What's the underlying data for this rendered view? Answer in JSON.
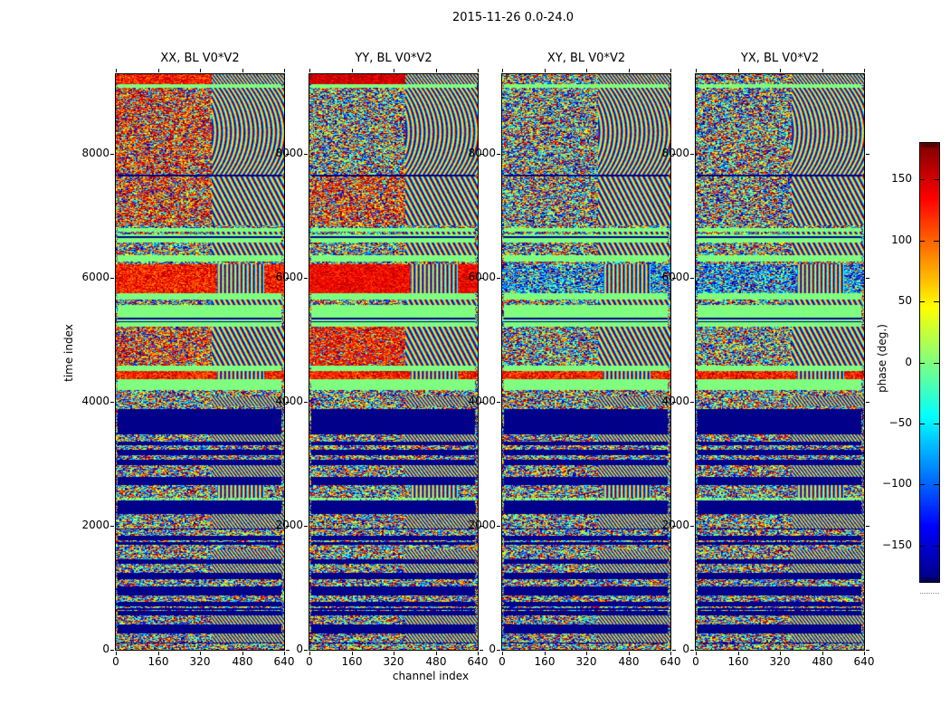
{
  "figure": {
    "title": "2015-11-26 0.0-24.0",
    "xlabel": "channel index",
    "ylabel": "time index",
    "colorbar_label": "phase (deg.)"
  },
  "chart_data": {
    "type": "heatmap",
    "title": "2015-11-26 0.0-24.0",
    "xlabel": "channel index",
    "ylabel": "time index",
    "xticks": [
      0,
      160,
      320,
      480,
      640
    ],
    "yticks": [
      0,
      2000,
      4000,
      6000,
      8000
    ],
    "xlim": [
      0,
      640
    ],
    "ylim": [
      0,
      9285
    ],
    "grid": false,
    "panels": [
      {
        "key": "XX",
        "title": "XX, BL V0*V2"
      },
      {
        "key": "YY",
        "title": "YY, BL V0*V2"
      },
      {
        "key": "XY",
        "title": "XY, BL V0*V2"
      },
      {
        "key": "YX",
        "title": "YX, BL V0*V2"
      }
    ],
    "colorbar": {
      "label": "phase (deg.)",
      "colormap": "jet",
      "vmin": -180,
      "vmax": 180,
      "ticks": [
        150,
        100,
        50,
        0,
        -50,
        -100,
        -150
      ]
    },
    "colors": {
      "navy_min_phase": "#000080",
      "green_zero_phase": "#80ff80",
      "darkred_max_phase": "#800000",
      "axis": "#000000",
      "background": "#ffffff"
    },
    "band_legend": {
      "sp": "random rainbow phase speckle",
      "spB": "blue-leaning phase speckle",
      "spO": "orange-tinted phase speckle",
      "or": "orange phase band (~+85..+170 deg)",
      "orS": "strong orange-red band",
      "orS2": "orange-dominated noisy band",
      "redN": "red noise band",
      "gr": "uniform ~0 deg (light green)",
      "nv": "uniform ~-180 deg (navy)",
      "pg": "pale green noisy line",
      "right_arc": "curved vertical interference fringes on right side",
      "right_diag": "diagonal fringes on right side",
      "right_vf": "vertical fringes on right side",
      "right_hatch": "fine diagonal hatch on right side"
    },
    "bands": [
      {
        "t0": 9285,
        "t1": 9120,
        "tex": "sp",
        "by": {
          "XX": "or",
          "YY": "redN"
        },
        "right": "hatch"
      },
      {
        "t0": 9120,
        "t1": 9070,
        "tex": "gr"
      },
      {
        "t0": 9070,
        "t1": 7660,
        "tex": "sp",
        "by": {
          "XX": "spO"
        },
        "right": "arc"
      },
      {
        "t0": 7660,
        "t1": 7635,
        "tex": "nv"
      },
      {
        "t0": 7635,
        "t1": 6850,
        "tex": "sp",
        "by": {
          "XX": "spO",
          "YY": "spO"
        },
        "right": "diag"
      },
      {
        "t0": 6850,
        "t1": 6800,
        "tex": "sp"
      },
      {
        "t0": 6800,
        "t1": 6745,
        "tex": "gr"
      },
      {
        "t0": 6745,
        "t1": 6705,
        "tex": "sp",
        "right": "diag"
      },
      {
        "t0": 6705,
        "t1": 6668,
        "tex": "gr"
      },
      {
        "t0": 6668,
        "t1": 6645,
        "tex": "nv"
      },
      {
        "t0": 6645,
        "t1": 6565,
        "tex": "gr"
      },
      {
        "t0": 6565,
        "t1": 6365,
        "tex": "sp",
        "right": "diag"
      },
      {
        "t0": 6365,
        "t1": 6265,
        "tex": "gr"
      },
      {
        "t0": 6265,
        "t1": 6215,
        "tex": "sp"
      },
      {
        "t0": 6215,
        "t1": 5745,
        "tex": "spB",
        "by": {
          "XX": "or",
          "YY": "orS"
        },
        "right": "vf"
      },
      {
        "t0": 5745,
        "t1": 5645,
        "tex": "gr"
      },
      {
        "t0": 5645,
        "t1": 5565,
        "tex": "sp",
        "right": "diag"
      },
      {
        "t0": 5565,
        "t1": 5355,
        "tex": "gr"
      },
      {
        "t0": 5355,
        "t1": 5330,
        "tex": "nv"
      },
      {
        "t0": 5330,
        "t1": 5300,
        "tex": "gr"
      },
      {
        "t0": 5300,
        "t1": 5280,
        "tex": "nv"
      },
      {
        "t0": 5280,
        "t1": 5215,
        "tex": "gr"
      },
      {
        "t0": 5215,
        "t1": 4580,
        "tex": "sp",
        "by": {
          "XX": "spO",
          "YY": "orS2"
        },
        "right": "diag"
      },
      {
        "t0": 4580,
        "t1": 4490,
        "tex": "gr"
      },
      {
        "t0": 4490,
        "t1": 4360,
        "tex": "or",
        "right": "vf"
      },
      {
        "t0": 4360,
        "t1": 4185,
        "tex": "gr"
      },
      {
        "t0": 4185,
        "t1": 4095,
        "tex": "sp"
      },
      {
        "t0": 4095,
        "t1": 3925,
        "tex": "sp",
        "right": "hatch"
      },
      {
        "t0": 3925,
        "t1": 3880,
        "tex": "sp"
      },
      {
        "t0": 3880,
        "t1": 3480,
        "tex": "nv"
      },
      {
        "t0": 3480,
        "t1": 3360,
        "tex": "sp",
        "right": "hatch"
      },
      {
        "t0": 3360,
        "t1": 3300,
        "tex": "nv"
      },
      {
        "t0": 3300,
        "t1": 3230,
        "tex": "sp"
      },
      {
        "t0": 3230,
        "t1": 3140,
        "tex": "nv"
      },
      {
        "t0": 3140,
        "t1": 3065,
        "tex": "sp"
      },
      {
        "t0": 3065,
        "t1": 2980,
        "tex": "nv"
      },
      {
        "t0": 2980,
        "t1": 2790,
        "tex": "sp",
        "right": "hatch"
      },
      {
        "t0": 2790,
        "t1": 2660,
        "tex": "nv"
      },
      {
        "t0": 2660,
        "t1": 2455,
        "tex": "sp",
        "right": "vf"
      },
      {
        "t0": 2455,
        "t1": 2405,
        "tex": "pg"
      },
      {
        "t0": 2405,
        "t1": 2195,
        "tex": "nv"
      },
      {
        "t0": 2195,
        "t1": 1960,
        "tex": "sp",
        "right": "hatch"
      },
      {
        "t0": 1960,
        "t1": 1940,
        "tex": "nv"
      },
      {
        "t0": 1940,
        "t1": 1845,
        "tex": "sp"
      },
      {
        "t0": 1845,
        "t1": 1760,
        "tex": "nv"
      },
      {
        "t0": 1760,
        "t1": 1740,
        "tex": "sp"
      },
      {
        "t0": 1740,
        "t1": 1700,
        "tex": "nv"
      },
      {
        "t0": 1700,
        "t1": 1620,
        "tex": "sp"
      },
      {
        "t0": 1620,
        "t1": 1460,
        "tex": "sp",
        "right": "hatch"
      },
      {
        "t0": 1460,
        "t1": 1390,
        "tex": "nv"
      },
      {
        "t0": 1390,
        "t1": 1240,
        "tex": "sp",
        "right": "hatch"
      },
      {
        "t0": 1240,
        "t1": 1140,
        "tex": "nv"
      },
      {
        "t0": 1140,
        "t1": 1020,
        "tex": "sp"
      },
      {
        "t0": 1020,
        "t1": 880,
        "tex": "nv"
      },
      {
        "t0": 880,
        "t1": 770,
        "tex": "sp"
      },
      {
        "t0": 770,
        "t1": 705,
        "tex": "nv"
      },
      {
        "t0": 705,
        "t1": 675,
        "tex": "sp"
      },
      {
        "t0": 675,
        "t1": 645,
        "tex": "nv"
      },
      {
        "t0": 645,
        "t1": 625,
        "tex": "sp"
      },
      {
        "t0": 625,
        "t1": 560,
        "tex": "nv"
      },
      {
        "t0": 560,
        "t1": 410,
        "tex": "sp",
        "right": "hatch"
      },
      {
        "t0": 410,
        "t1": 265,
        "tex": "nv"
      },
      {
        "t0": 265,
        "t1": 120,
        "tex": "sp",
        "right": "hatch"
      },
      {
        "t0": 120,
        "t1": 95,
        "tex": "nv"
      },
      {
        "t0": 95,
        "t1": 0,
        "tex": "sp"
      }
    ]
  }
}
